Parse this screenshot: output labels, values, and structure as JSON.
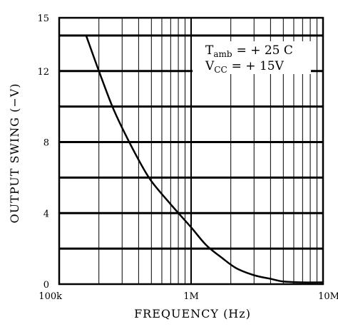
{
  "chart_data": {
    "type": "line",
    "title": "",
    "xlabel": "FREQUENCY (Hz)",
    "ylabel": "OUTPUT SWING (−V)",
    "x_scale": "log",
    "xlim": [
      100000,
      10000000
    ],
    "ylim": [
      0,
      15
    ],
    "x_ticks": [
      {
        "value": 100000,
        "label": "100k"
      },
      {
        "value": 1000000,
        "label": "1M"
      },
      {
        "value": 10000000,
        "label": "10M"
      }
    ],
    "y_ticks": [
      {
        "value": 0,
        "label": "0"
      },
      {
        "value": 4,
        "label": "4"
      },
      {
        "value": 8,
        "label": "8"
      },
      {
        "value": 12,
        "label": "12"
      },
      {
        "value": 15,
        "label": "15"
      }
    ],
    "grid": true,
    "annotation": {
      "line1_main": "T",
      "line1_sub": "amb",
      "line1_rest": "= + 25  C",
      "line2_main": "V",
      "line2_sub": "CC",
      "line2_rest": "= + 15V"
    },
    "series": [
      {
        "x": [
          160000,
          200000,
          250000,
          300000,
          400000,
          500000,
          700000,
          1000000,
          1300000,
          1700000,
          2200000,
          3000000,
          4000000,
          5000000,
          7000000,
          10000000
        ],
        "y": [
          14.0,
          12.0,
          10.1,
          8.8,
          7.0,
          5.8,
          4.5,
          3.2,
          2.2,
          1.5,
          0.9,
          0.5,
          0.3,
          0.15,
          0.1,
          0.1
        ]
      }
    ]
  }
}
